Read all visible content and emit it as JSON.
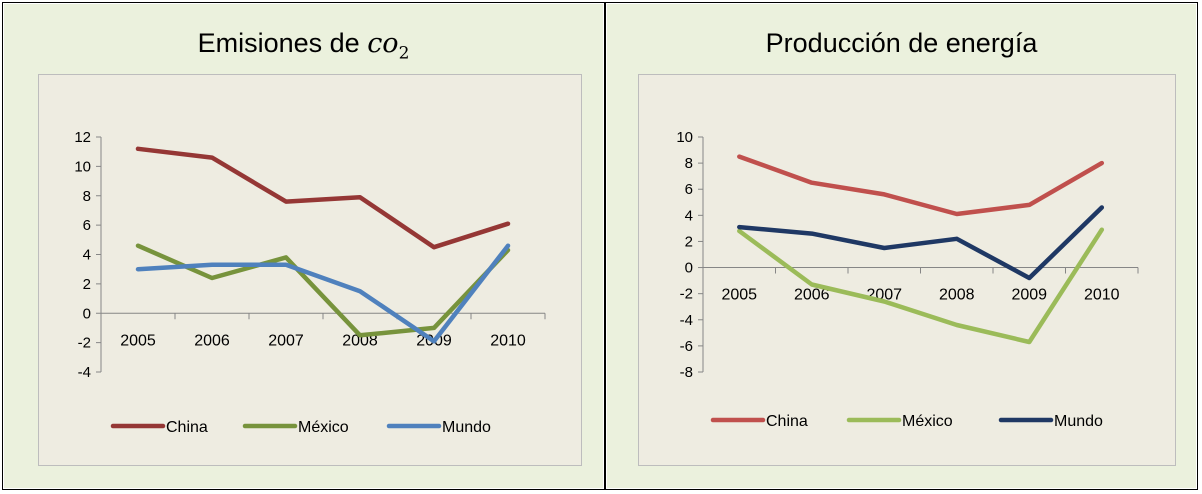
{
  "chart_data": [
    {
      "type": "line",
      "title": "Emisiones de ",
      "title_math": "co",
      "title_sub": "2",
      "categories": [
        "2005",
        "2006",
        "2007",
        "2008",
        "2009",
        "2010"
      ],
      "ylim": [
        -4,
        12
      ],
      "yticks": [
        -4,
        -2,
        0,
        2,
        4,
        6,
        8,
        10,
        12
      ],
      "grid": false,
      "legend": "bottom",
      "series": [
        {
          "name": "China",
          "color": "#953735",
          "values": [
            11.2,
            10.6,
            7.6,
            7.9,
            4.5,
            6.1
          ]
        },
        {
          "name": "México",
          "color": "#77933c",
          "values": [
            4.6,
            2.4,
            3.8,
            -1.5,
            -1.0,
            4.3
          ]
        },
        {
          "name": "Mundo",
          "color": "#4f81bd",
          "values": [
            3.0,
            3.3,
            3.3,
            1.5,
            -1.9,
            4.6
          ]
        }
      ]
    },
    {
      "type": "line",
      "title": "Producción de energía",
      "categories": [
        "2005",
        "2006",
        "2007",
        "2008",
        "2009",
        "2010"
      ],
      "ylim": [
        -8,
        10
      ],
      "yticks": [
        -8,
        -6,
        -4,
        -2,
        0,
        2,
        4,
        6,
        8,
        10
      ],
      "grid": false,
      "legend": "bottom",
      "series": [
        {
          "name": "China",
          "color": "#c0504d",
          "values": [
            8.5,
            6.5,
            5.6,
            4.1,
            4.8,
            8.0
          ]
        },
        {
          "name": "México",
          "color": "#9bbb59",
          "values": [
            2.8,
            -1.3,
            -2.6,
            -4.4,
            -5.7,
            2.9
          ]
        },
        {
          "name": "Mundo",
          "color": "#1f3864",
          "values": [
            3.1,
            2.6,
            1.5,
            2.2,
            -0.8,
            4.6
          ]
        }
      ]
    }
  ]
}
